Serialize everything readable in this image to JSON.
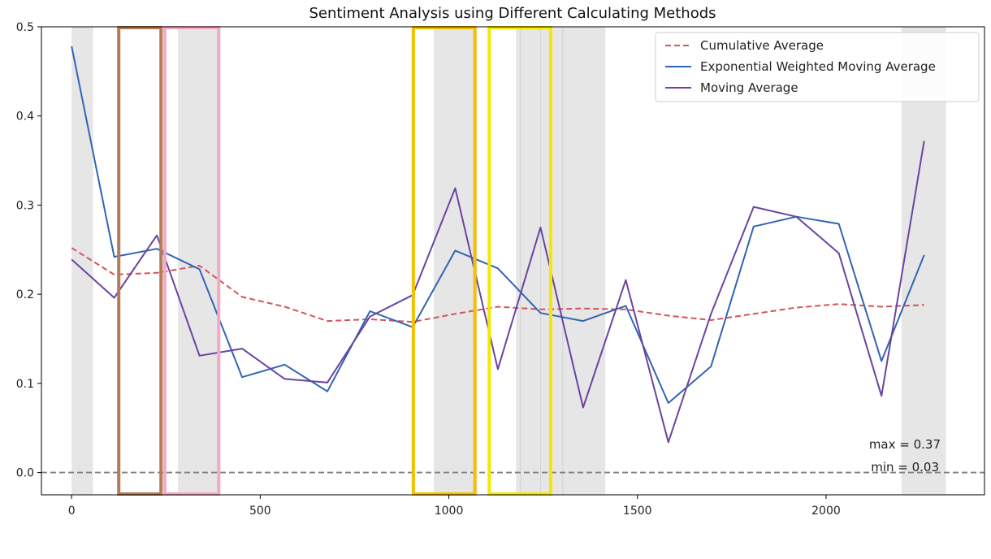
{
  "chart_data": {
    "type": "line",
    "title": "Sentiment Analysis using Different Calculating Methods",
    "xlabel": "",
    "ylabel": "",
    "xlim": [
      -80,
      2420
    ],
    "ylim": [
      -0.025,
      0.5
    ],
    "xticks": [
      0,
      500,
      1000,
      1500,
      2000
    ],
    "yticks": [
      0.0,
      0.1,
      0.2,
      0.3,
      0.4,
      0.5
    ],
    "xtick_labels": [
      "0",
      "500",
      "1000",
      "1500",
      "2000"
    ],
    "ytick_labels": [
      "0.0",
      "0.1",
      "0.2",
      "0.3",
      "0.4",
      "0.5"
    ],
    "grid": false,
    "legend_position": "top-right",
    "series": [
      {
        "name": "Cumulative Average",
        "color": "#d1555a",
        "style": "dashed",
        "x": [
          0,
          113,
          226,
          339,
          452,
          565,
          678,
          791,
          904,
          1017,
          1130,
          1243,
          1356,
          1469,
          1582,
          1695,
          1808,
          1921,
          2034,
          2147,
          2260
        ],
        "y": [
          0.252,
          0.222,
          0.224,
          0.232,
          0.197,
          0.186,
          0.17,
          0.172,
          0.169,
          0.178,
          0.186,
          0.183,
          0.184,
          0.183,
          0.176,
          0.171,
          0.178,
          0.185,
          0.189,
          0.186,
          0.188
        ]
      },
      {
        "name": "Exponential Weighted Moving Average",
        "color": "#3264b4",
        "style": "solid",
        "x": [
          0,
          113,
          226,
          339,
          452,
          565,
          678,
          791,
          904,
          1017,
          1130,
          1243,
          1356,
          1469,
          1582,
          1695,
          1808,
          1921,
          2034,
          2147,
          2260
        ],
        "y": [
          0.478,
          0.242,
          0.251,
          0.228,
          0.107,
          0.121,
          0.091,
          0.181,
          0.163,
          0.249,
          0.229,
          0.179,
          0.17,
          0.187,
          0.078,
          0.119,
          0.276,
          0.287,
          0.279,
          0.125,
          0.244
        ]
      },
      {
        "name": "Moving Average",
        "color": "#6a44a0",
        "style": "solid",
        "x": [
          0,
          113,
          226,
          339,
          452,
          565,
          678,
          791,
          904,
          1017,
          1130,
          1243,
          1356,
          1469,
          1582,
          1695,
          1808,
          1921,
          2034,
          2147,
          2260
        ],
        "y": [
          0.239,
          0.196,
          0.266,
          0.131,
          0.139,
          0.105,
          0.101,
          0.175,
          0.199,
          0.319,
          0.116,
          0.275,
          0.073,
          0.216,
          0.034,
          0.178,
          0.298,
          0.287,
          0.246,
          0.086,
          0.372
        ]
      }
    ],
    "shaded_regions": [
      {
        "x0": 0,
        "x1": 57,
        "color": "#e6e6e6"
      },
      {
        "x0": 282,
        "x1": 390,
        "color": "#e6e6e6"
      },
      {
        "x0": 960,
        "x1": 1075,
        "color": "#e6e6e6"
      },
      {
        "x0": 1178,
        "x1": 1415,
        "color": "#e6e6e6"
      },
      {
        "x0": 2200,
        "x1": 2318,
        "color": "#e6e6e6"
      }
    ],
    "vertical_lines": [
      1190,
      1243,
      1302
    ],
    "zero_line": {
      "y": 0.0,
      "color": "#808080",
      "style": "dashed"
    },
    "highlight_boxes": [
      {
        "x0": 125,
        "x1": 237,
        "color": "#b57a56"
      },
      {
        "x0": 247,
        "x1": 390,
        "color": "#f5a8c4"
      },
      {
        "x0": 906,
        "x1": 1069,
        "color": "#f5c000"
      },
      {
        "x0": 1107,
        "x1": 1270,
        "color": "#f5e800"
      }
    ],
    "annotations": {
      "max_text": "max = 0.37",
      "min_text": "min = 0.03"
    }
  }
}
